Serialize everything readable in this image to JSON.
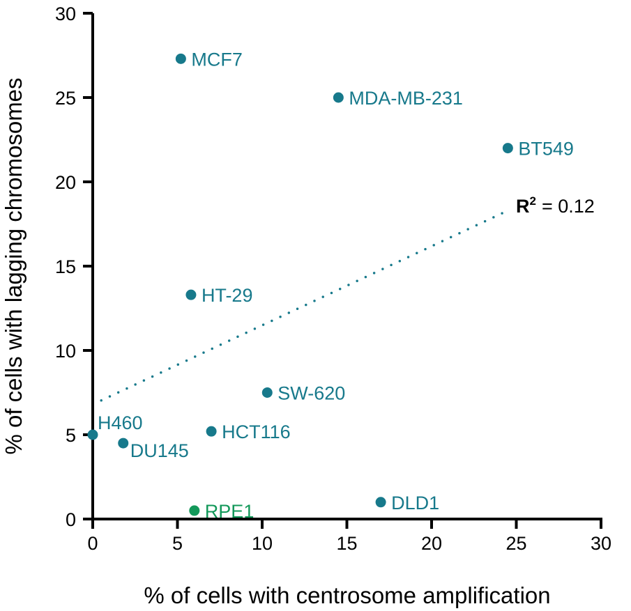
{
  "chart_data": {
    "type": "scatter",
    "title": "",
    "xlabel": "% of cells with centrosome amplification",
    "ylabel": "% of cells with lagging chromosomes",
    "xlim": [
      0,
      30
    ],
    "ylim": [
      0,
      30
    ],
    "xticks": [
      "0",
      "5",
      "10",
      "15",
      "20",
      "25",
      "30"
    ],
    "yticks": [
      "0",
      "5",
      "10",
      "15",
      "20",
      "25",
      "30"
    ],
    "grid": false,
    "points": [
      {
        "label": "MCF7",
        "x": 5.2,
        "y": 27.3,
        "color": "#17798b"
      },
      {
        "label": "MDA-MB-231",
        "x": 14.5,
        "y": 25.0,
        "color": "#17798b"
      },
      {
        "label": "BT549",
        "x": 24.5,
        "y": 22.0,
        "color": "#17798b"
      },
      {
        "label": "HT-29",
        "x": 5.8,
        "y": 13.3,
        "color": "#17798b"
      },
      {
        "label": "SW-620",
        "x": 10.3,
        "y": 7.5,
        "color": "#17798b"
      },
      {
        "label": "H460",
        "x": 0.0,
        "y": 5.0,
        "color": "#17798b"
      },
      {
        "label": "HCT116",
        "x": 7.0,
        "y": 5.2,
        "color": "#17798b"
      },
      {
        "label": "DU145",
        "x": 1.8,
        "y": 4.5,
        "color": "#17798b"
      },
      {
        "label": "DLD1",
        "x": 17.0,
        "y": 1.0,
        "color": "#17798b"
      },
      {
        "label": "RPE1",
        "x": 6.0,
        "y": 0.5,
        "color": "#13985a"
      }
    ],
    "trendline": {
      "x": [
        0,
        24.3
      ],
      "y": [
        6.8,
        18.2
      ],
      "style": "dotted",
      "color": "#17798b"
    },
    "annotation": {
      "r2_label": "R",
      "r2_sup": "2",
      "r2_value": "= 0.12"
    }
  }
}
